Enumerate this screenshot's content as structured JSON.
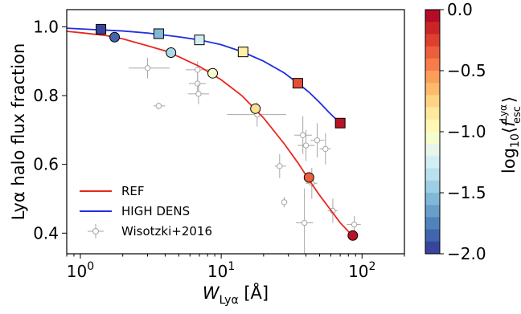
{
  "chart_data": {
    "type": "scatter",
    "xscale": "log",
    "xlim": [
      0.8,
      200
    ],
    "ylim": [
      0.34,
      1.05
    ],
    "xlabel": "W_Lyα [Å]",
    "xlabel_main": "W",
    "xlabel_sub": "Lyα",
    "xlabel_unit": " [Å]",
    "ylabel": "Lyα halo flux fraction",
    "xtick_labels": [
      {
        "value": 1,
        "base": "10",
        "exp": "0"
      },
      {
        "value": 10,
        "base": "10",
        "exp": "1"
      },
      {
        "value": 100,
        "base": "10",
        "exp": "2"
      }
    ],
    "yticks": [
      0.4,
      0.6,
      0.8,
      1.0
    ],
    "ytick_labels": [
      "0.4",
      "0.6",
      "0.8",
      "1.0"
    ],
    "legend": {
      "placement": "lower-left",
      "entries": [
        {
          "label": "REF",
          "color": "#e8271f",
          "kind": "line"
        },
        {
          "label": "HIGH DENS",
          "color": "#1f2ee0",
          "kind": "line"
        },
        {
          "label": "Wisotzki+2016",
          "color": "#a6a6a6",
          "kind": "errorbar-marker"
        }
      ]
    },
    "series": [
      {
        "name": "REF",
        "color": "#e8271f",
        "marker": "circle",
        "x": [
          1.75,
          4.4,
          8.7,
          17.5,
          42,
          86
        ],
        "y": [
          0.97,
          0.925,
          0.865,
          0.762,
          0.562,
          0.393
        ],
        "log_fesc": [
          -1.85,
          -1.4,
          -1.05,
          -0.8,
          -0.35,
          -0.08
        ],
        "curve_x": [
          0.8,
          1.0,
          1.5,
          2,
          3,
          4,
          5,
          7,
          10,
          14,
          20,
          28,
          35,
          42,
          50,
          60,
          70,
          80,
          86
        ],
        "curve_y": [
          0.987,
          0.983,
          0.975,
          0.965,
          0.945,
          0.93,
          0.913,
          0.885,
          0.846,
          0.8,
          0.735,
          0.66,
          0.605,
          0.555,
          0.51,
          0.467,
          0.43,
          0.405,
          0.392
        ]
      },
      {
        "name": "HIGH DENS",
        "color": "#1f2ee0",
        "marker": "square",
        "x": [
          1.4,
          3.6,
          7.0,
          14.3,
          35,
          70
        ],
        "y": [
          0.993,
          0.98,
          0.962,
          0.927,
          0.836,
          0.72
        ],
        "log_fesc": [
          -1.95,
          -1.55,
          -1.25,
          -0.9,
          -0.3,
          -0.08
        ],
        "curve_x": [
          0.8,
          1,
          2,
          3,
          5,
          7,
          10,
          14,
          20,
          28,
          35,
          42,
          50,
          58,
          64,
          70
        ],
        "curve_y": [
          0.996,
          0.994,
          0.988,
          0.982,
          0.971,
          0.962,
          0.948,
          0.928,
          0.9,
          0.866,
          0.836,
          0.81,
          0.78,
          0.752,
          0.735,
          0.72
        ]
      },
      {
        "name": "Wisotzki+2016",
        "color": "#a6a6a6",
        "marker": "open-circle",
        "points": [
          {
            "x": 3.0,
            "y": 0.88,
            "xerr": [
              2.2,
              4.3
            ],
            "yerr": [
              0.85,
              0.91
            ]
          },
          {
            "x": 3.6,
            "y": 0.77,
            "xerr": [
              3.3,
              4.0
            ],
            "yerr": [
              0.76,
              0.78
            ]
          },
          {
            "x": 6.8,
            "y": 0.875,
            "xerr": [
              5.6,
              8.4
            ],
            "yerr": [
              0.845,
              0.9
            ]
          },
          {
            "x": 6.8,
            "y": 0.835,
            "xerr": [
              5.9,
              7.8
            ],
            "yerr": [
              0.805,
              0.865
            ]
          },
          {
            "x": 6.9,
            "y": 0.805,
            "xerr": [
              5.8,
              8.2
            ],
            "yerr": [
              0.775,
              0.835
            ]
          },
          {
            "x": 18,
            "y": 0.745,
            "xerr": [
              11,
              29
            ],
            "yerr": [
              0.71,
              0.78
            ]
          },
          {
            "x": 26,
            "y": 0.595,
            "xerr": [
              24,
              29
            ],
            "yerr": [
              0.56,
              0.63
            ]
          },
          {
            "x": 28,
            "y": 0.49,
            "xerr": [
              27,
              29.5
            ],
            "yerr": [
              0.475,
              0.505
            ]
          },
          {
            "x": 38,
            "y": 0.685,
            "xerr": [
              33,
              44
            ],
            "yerr": [
              0.63,
              0.74
            ]
          },
          {
            "x": 39,
            "y": 0.43,
            "xerr": [
              34,
              45
            ],
            "yerr": [
              0.33,
              0.53
            ]
          },
          {
            "x": 40,
            "y": 0.655,
            "xerr": [
              35,
              46
            ],
            "yerr": [
              0.61,
              0.7
            ]
          },
          {
            "x": 44,
            "y": 0.545,
            "xerr": [
              40,
              48
            ],
            "yerr": [
              0.5,
              0.59
            ]
          },
          {
            "x": 48,
            "y": 0.67,
            "xerr": [
              43,
              54
            ],
            "yerr": [
              0.62,
              0.72
            ]
          },
          {
            "x": 55,
            "y": 0.645,
            "xerr": [
              50,
              60
            ],
            "yerr": [
              0.6,
              0.69
            ]
          },
          {
            "x": 62,
            "y": 0.465,
            "xerr": [
              57,
              67
            ],
            "yerr": [
              0.43,
              0.5
            ]
          },
          {
            "x": 88,
            "y": 0.425,
            "xerr": [
              78,
              98
            ],
            "yerr": [
              0.4,
              0.45
            ]
          }
        ]
      }
    ],
    "colorbar": {
      "label": "log10⟨f_esc^Lyα⟩",
      "label_prefix": "log",
      "label_log_sub": "10",
      "label_main": "f",
      "label_sup": "Lyα",
      "label_sub": "esc",
      "range": [
        -2.0,
        0.0
      ],
      "ticks": [
        0.0,
        -0.5,
        -1.0,
        -1.5,
        -2.0
      ],
      "tick_labels": [
        "0.0",
        "−0.5",
        "−1.0",
        "−1.5",
        "−2.0"
      ]
    }
  }
}
